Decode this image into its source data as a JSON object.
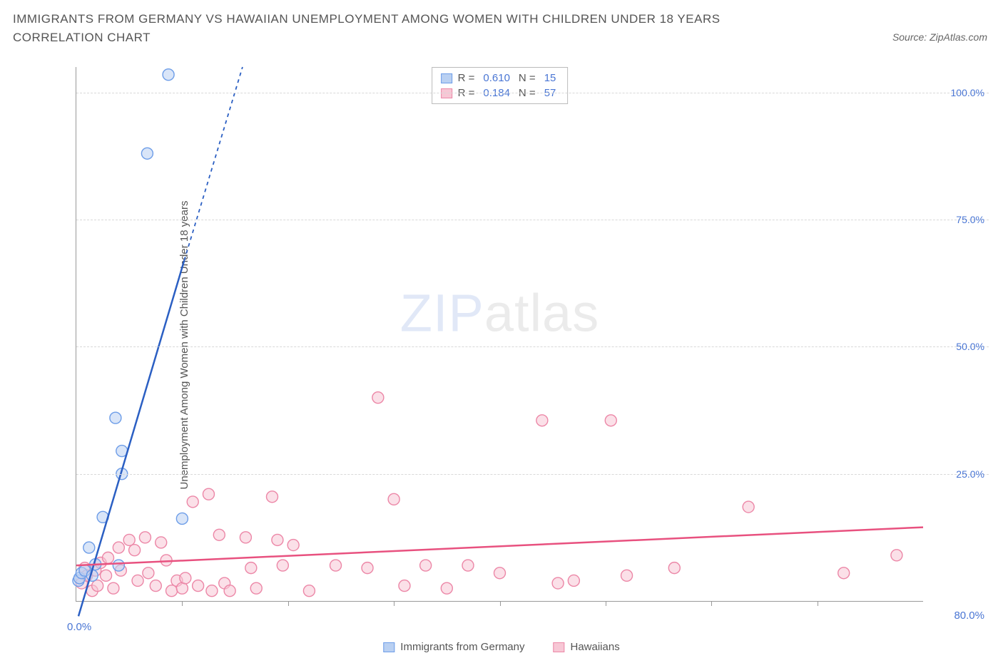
{
  "title": "IMMIGRANTS FROM GERMANY VS HAWAIIAN UNEMPLOYMENT AMONG WOMEN WITH CHILDREN UNDER 18 YEARS CORRELATION CHART",
  "source": "Source: ZipAtlas.com",
  "y_label": "Unemployment Among Women with Children Under 18 years",
  "watermark_bold": "ZIP",
  "watermark_thin": "atlas",
  "chart": {
    "type": "scatter",
    "background_color": "#ffffff",
    "grid_color": "#d8d8d8",
    "axis_color": "#999999",
    "xlim": [
      0,
      80
    ],
    "ylim": [
      0,
      105
    ],
    "x_min_label": "0.0%",
    "x_max_label": "80.0%",
    "x_tick_positions": [
      10,
      20,
      30,
      40,
      50,
      60,
      70
    ],
    "y_ticks": [
      {
        "v": 25,
        "label": "25.0%"
      },
      {
        "v": 50,
        "label": "50.0%"
      },
      {
        "v": 75,
        "label": "75.0%"
      },
      {
        "v": 100,
        "label": "100.0%"
      }
    ],
    "marker_radius": 8,
    "marker_opacity": 0.55,
    "marker_stroke_width": 1.4,
    "line_width_solid": 2.5,
    "line_width_dash": 1.8,
    "dash_pattern": "5,5",
    "series": [
      {
        "name": "Immigrants from Germany",
        "color_fill": "#b9d0f2",
        "color_stroke": "#6d9de8",
        "line_color": "#2b5fc3",
        "R": "0.610",
        "N": "15",
        "trend": {
          "x1": 0.2,
          "y1": -3,
          "x2_solid": 10.2,
          "y2_solid": 67,
          "x2_dash": 15.7,
          "y2_dash": 105
        },
        "points": [
          {
            "x": 0.2,
            "y": 4.0
          },
          {
            "x": 0.3,
            "y": 4.5
          },
          {
            "x": 0.5,
            "y": 5.5
          },
          {
            "x": 0.8,
            "y": 6.0
          },
          {
            "x": 1.8,
            "y": 7.2
          },
          {
            "x": 4.0,
            "y": 7.0
          },
          {
            "x": 1.2,
            "y": 10.5
          },
          {
            "x": 2.5,
            "y": 16.5
          },
          {
            "x": 4.3,
            "y": 25.0
          },
          {
            "x": 4.3,
            "y": 29.5
          },
          {
            "x": 3.7,
            "y": 36.0
          },
          {
            "x": 10.0,
            "y": 16.2
          },
          {
            "x": 6.7,
            "y": 88.0
          },
          {
            "x": 8.7,
            "y": 103.5
          },
          {
            "x": 1.5,
            "y": 5.0
          }
        ]
      },
      {
        "name": "Hawaiians",
        "color_fill": "#f7c7d5",
        "color_stroke": "#ec87a7",
        "line_color": "#e8517f",
        "R": "0.184",
        "N": "57",
        "trend": {
          "x1": 0,
          "y1": 7.0,
          "x2_solid": 80,
          "y2_solid": 14.5,
          "x2_dash": 80,
          "y2_dash": 14.5
        },
        "points": [
          {
            "x": 0.5,
            "y": 3.5
          },
          {
            "x": 0.8,
            "y": 6.5
          },
          {
            "x": 1.0,
            "y": 5.0
          },
          {
            "x": 1.5,
            "y": 2.0
          },
          {
            "x": 1.8,
            "y": 6.0
          },
          {
            "x": 2.0,
            "y": 3.0
          },
          {
            "x": 2.3,
            "y": 7.5
          },
          {
            "x": 2.8,
            "y": 5.0
          },
          {
            "x": 3.0,
            "y": 8.5
          },
          {
            "x": 3.5,
            "y": 2.5
          },
          {
            "x": 4.0,
            "y": 10.5
          },
          {
            "x": 4.2,
            "y": 6.0
          },
          {
            "x": 5.0,
            "y": 12.0
          },
          {
            "x": 5.5,
            "y": 10.0
          },
          {
            "x": 5.8,
            "y": 4.0
          },
          {
            "x": 6.5,
            "y": 12.5
          },
          {
            "x": 6.8,
            "y": 5.5
          },
          {
            "x": 7.5,
            "y": 3.0
          },
          {
            "x": 8.0,
            "y": 11.5
          },
          {
            "x": 8.5,
            "y": 8.0
          },
          {
            "x": 9.0,
            "y": 2.0
          },
          {
            "x": 9.5,
            "y": 4.0
          },
          {
            "x": 10.0,
            "y": 2.5
          },
          {
            "x": 10.3,
            "y": 4.5
          },
          {
            "x": 11.0,
            "y": 19.5
          },
          {
            "x": 11.5,
            "y": 3.0
          },
          {
            "x": 12.5,
            "y": 21.0
          },
          {
            "x": 12.8,
            "y": 2.0
          },
          {
            "x": 13.5,
            "y": 13.0
          },
          {
            "x": 14.0,
            "y": 3.5
          },
          {
            "x": 14.5,
            "y": 2.0
          },
          {
            "x": 16.0,
            "y": 12.5
          },
          {
            "x": 16.5,
            "y": 6.5
          },
          {
            "x": 17.0,
            "y": 2.5
          },
          {
            "x": 18.5,
            "y": 20.5
          },
          {
            "x": 19.0,
            "y": 12.0
          },
          {
            "x": 19.5,
            "y": 7.0
          },
          {
            "x": 20.5,
            "y": 11.0
          },
          {
            "x": 22.0,
            "y": 2.0
          },
          {
            "x": 24.5,
            "y": 7.0
          },
          {
            "x": 27.5,
            "y": 6.5
          },
          {
            "x": 28.5,
            "y": 40.0
          },
          {
            "x": 30.0,
            "y": 20.0
          },
          {
            "x": 31.0,
            "y": 3.0
          },
          {
            "x": 33.0,
            "y": 7.0
          },
          {
            "x": 35.0,
            "y": 2.5
          },
          {
            "x": 37.0,
            "y": 7.0
          },
          {
            "x": 40.0,
            "y": 5.5
          },
          {
            "x": 44.0,
            "y": 35.5
          },
          {
            "x": 45.5,
            "y": 3.5
          },
          {
            "x": 47.0,
            "y": 4.0
          },
          {
            "x": 50.5,
            "y": 35.5
          },
          {
            "x": 52.0,
            "y": 5.0
          },
          {
            "x": 56.5,
            "y": 6.5
          },
          {
            "x": 63.5,
            "y": 18.5
          },
          {
            "x": 72.5,
            "y": 5.5
          },
          {
            "x": 77.5,
            "y": 9.0
          }
        ]
      }
    ]
  },
  "legend_prefix_R": "R =",
  "legend_prefix_N": "N ="
}
